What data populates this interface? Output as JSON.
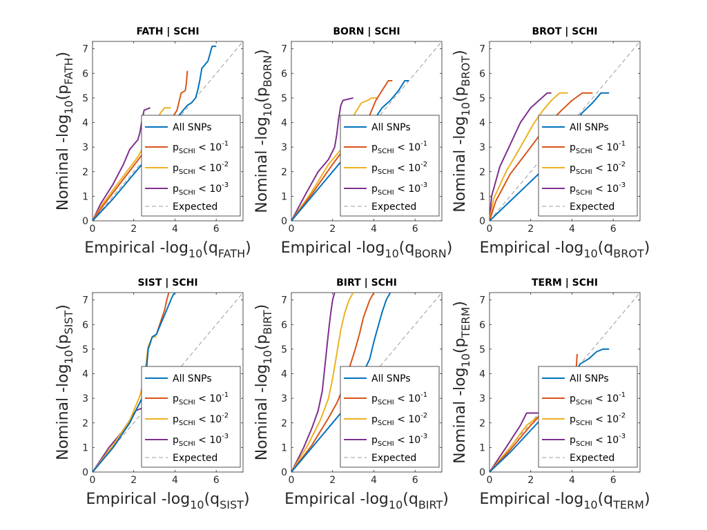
{
  "figure": {
    "background": "#ffffff"
  },
  "legend": {
    "all_snps": "All SNPs",
    "p_letter": "p",
    "p_sub": "SCHI",
    "less_than": " < 10",
    "thresholds": [
      "-1",
      "-2",
      "-3"
    ],
    "expected": "Expected"
  },
  "colors": {
    "all": "#0072BD",
    "lt1": "#D95319",
    "lt2": "#EDB120",
    "lt3": "#7E2F8E",
    "expected": "#7f7f7f"
  },
  "chart_data": [
    {
      "type": "line",
      "title": "FATH | SCHI",
      "xlabel": {
        "prefix": "Empirical -log",
        "sub10": "10",
        "open": "(q",
        "sub": "FATH",
        "close": ")"
      },
      "ylabel": {
        "prefix": "Nominal -log",
        "sub10": "10",
        "open": "(p",
        "sub": "FATH",
        "close": ")"
      },
      "xlim": [
        0,
        7.3
      ],
      "ylim": [
        0,
        7.3
      ],
      "xticks": [
        0,
        2,
        4,
        6
      ],
      "yticks": [
        0,
        1,
        2,
        3,
        4,
        5,
        6,
        7
      ],
      "series": [
        {
          "key": "all",
          "x": [
            0,
            1,
            2,
            3,
            3.7,
            4.0,
            4.4,
            4.6,
            4.8,
            5.0,
            5.1,
            5.2,
            5.3,
            5.6,
            5.8,
            6.0
          ],
          "y": [
            0,
            0.9,
            1.9,
            2.9,
            3.7,
            4.1,
            4.5,
            4.7,
            4.8,
            5.0,
            5.3,
            5.7,
            6.2,
            6.5,
            7.1,
            7.1
          ]
        },
        {
          "key": "lt1",
          "x": [
            0,
            0.5,
            1.5,
            2.6,
            3.4,
            3.8,
            4.1,
            4.3,
            4.5,
            4.55,
            4.6
          ],
          "y": [
            0,
            0.6,
            1.7,
            2.9,
            3.6,
            4.1,
            4.5,
            5.2,
            5.3,
            5.6,
            6.1
          ]
        },
        {
          "key": "lt2",
          "x": [
            0,
            0.5,
            1.3,
            2.2,
            2.6,
            3.0,
            3.3,
            3.5,
            3.8
          ],
          "y": [
            0,
            0.7,
            1.6,
            2.6,
            3.2,
            3.8,
            4.4,
            4.6,
            4.6
          ]
        },
        {
          "key": "lt3",
          "x": [
            0,
            0.4,
            1.0,
            1.5,
            1.8,
            2.1,
            2.2,
            2.3,
            2.4,
            2.5,
            2.8
          ],
          "y": [
            0,
            0.7,
            1.5,
            2.3,
            2.9,
            3.2,
            3.3,
            3.6,
            4.1,
            4.5,
            4.6
          ]
        }
      ]
    },
    {
      "type": "line",
      "title": "BORN | SCHI",
      "xlabel": {
        "prefix": "Empirical -log",
        "sub10": "10",
        "open": "(q",
        "sub": "BORN",
        "close": ")"
      },
      "ylabel": {
        "prefix": "Nominal -log",
        "sub10": "10",
        "open": "(p",
        "sub": "BORN",
        "close": ")"
      },
      "xlim": [
        0,
        7.3
      ],
      "ylim": [
        0,
        7.3
      ],
      "xticks": [
        0,
        2,
        4,
        6
      ],
      "yticks": [
        0,
        1,
        2,
        3,
        4,
        5,
        6,
        7
      ],
      "series": [
        {
          "key": "all",
          "x": [
            0,
            1,
            2,
            3,
            3.6,
            4.0,
            4.4,
            4.8,
            5.2,
            5.5,
            5.7
          ],
          "y": [
            0,
            1.0,
            2.0,
            3.0,
            3.6,
            4.1,
            4.6,
            4.9,
            5.3,
            5.7,
            5.7
          ]
        },
        {
          "key": "lt1",
          "x": [
            0,
            1.0,
            2.0,
            2.8,
            3.4,
            3.8,
            4.1,
            4.4,
            4.7,
            4.9
          ],
          "y": [
            0,
            1.1,
            2.3,
            3.2,
            3.8,
            4.3,
            4.9,
            5.3,
            5.7,
            5.7
          ]
        },
        {
          "key": "lt2",
          "x": [
            0,
            1.0,
            1.8,
            2.5,
            2.8,
            3.1,
            3.4,
            3.7,
            3.9,
            4.2
          ],
          "y": [
            0,
            1.2,
            2.3,
            3.0,
            3.9,
            4.4,
            4.8,
            4.9,
            5.0,
            5.0
          ]
        },
        {
          "key": "lt3",
          "x": [
            0,
            0.7,
            1.3,
            1.8,
            2.1,
            2.2,
            2.3,
            2.4,
            2.5,
            3.0
          ],
          "y": [
            0,
            1.1,
            2.0,
            2.5,
            3.0,
            3.5,
            4.2,
            4.7,
            4.9,
            5.0
          ]
        }
      ]
    },
    {
      "type": "line",
      "title": "BROT | SCHI",
      "xlabel": {
        "prefix": "Empirical -log",
        "sub10": "10",
        "open": "(q",
        "sub": "BROT",
        "close": ")"
      },
      "ylabel": {
        "prefix": "Nominal -log",
        "sub10": "10",
        "open": "(p",
        "sub": "BROT",
        "close": ")"
      },
      "xlim": [
        0,
        7.3
      ],
      "ylim": [
        0,
        7.3
      ],
      "xticks": [
        0,
        2,
        4,
        6
      ],
      "yticks": [
        0,
        1,
        2,
        3,
        4,
        5,
        6,
        7
      ],
      "series": [
        {
          "key": "all",
          "x": [
            0,
            1,
            2,
            3,
            4,
            4.5,
            5.0,
            5.4,
            5.8
          ],
          "y": [
            0,
            0.8,
            1.6,
            2.4,
            3.9,
            4.4,
            4.8,
            5.2,
            5.2
          ]
        },
        {
          "key": "lt1",
          "x": [
            0,
            0.3,
            1.0,
            2.0,
            2.8,
            3.5,
            4.0,
            4.5,
            5.0
          ],
          "y": [
            0,
            0.8,
            1.9,
            3.0,
            3.9,
            4.5,
            4.9,
            5.2,
            5.2
          ]
        },
        {
          "key": "lt2",
          "x": [
            0,
            0.2,
            0.8,
            1.5,
            2.1,
            2.6,
            3.0,
            3.4,
            3.8
          ],
          "y": [
            0,
            0.9,
            2.0,
            3.0,
            3.9,
            4.5,
            4.9,
            5.2,
            5.2
          ]
        },
        {
          "key": "lt3",
          "x": [
            0,
            0.1,
            0.5,
            1.0,
            1.5,
            2.0,
            2.4,
            2.8,
            3.0
          ],
          "y": [
            0,
            1.0,
            2.2,
            3.1,
            4.0,
            4.6,
            4.9,
            5.2,
            5.2
          ]
        }
      ]
    },
    {
      "type": "line",
      "title": "SIST | SCHI",
      "xlabel": {
        "prefix": "Empirical -log",
        "sub10": "10",
        "open": "(q",
        "sub": "SIST",
        "close": ")"
      },
      "ylabel": {
        "prefix": "Nominal -log",
        "sub10": "10",
        "open": "(p",
        "sub": "SIST",
        "close": ")"
      },
      "xlim": [
        0,
        7.3
      ],
      "ylim": [
        0,
        7.3
      ],
      "xticks": [
        0,
        2,
        4,
        6
      ],
      "yticks": [
        0,
        1,
        2,
        3,
        4,
        5,
        6,
        7
      ],
      "series": [
        {
          "key": "all",
          "x": [
            0,
            1,
            1.8,
            2.4,
            2.6,
            2.7,
            2.9,
            3.1,
            3.3,
            3.5,
            3.7,
            3.9,
            4.0
          ],
          "y": [
            0,
            1.0,
            2.0,
            3.0,
            4.0,
            5.0,
            5.5,
            5.6,
            6.0,
            6.4,
            6.8,
            7.2,
            7.3
          ]
        },
        {
          "key": "lt1",
          "x": [
            0,
            1,
            1.8,
            2.4,
            2.6,
            2.7,
            2.9,
            3.1,
            3.3,
            3.5,
            3.6,
            3.7
          ],
          "y": [
            0,
            1.0,
            2.0,
            3.0,
            4.0,
            5.0,
            5.5,
            5.6,
            6.1,
            6.6,
            7.0,
            7.3
          ]
        },
        {
          "key": "lt2",
          "x": [
            0,
            1,
            1.8,
            2.3,
            2.5,
            2.7,
            2.9,
            3.1
          ],
          "y": [
            0,
            1.1,
            2.1,
            3.1,
            3.8,
            5.1,
            5.5,
            5.5
          ]
        },
        {
          "key": "lt3",
          "x": [
            0,
            0.8,
            1.4,
            1.8,
            2.1,
            2.4
          ],
          "y": [
            0,
            1.0,
            1.6,
            2.1,
            2.5,
            2.6
          ]
        }
      ]
    },
    {
      "type": "line",
      "title": "BIRT | SCHI",
      "xlabel": {
        "prefix": "Empirical -log",
        "sub10": "10",
        "open": "(q",
        "sub": "BIRT",
        "close": ")"
      },
      "ylabel": {
        "prefix": "Nominal -log",
        "sub10": "10",
        "open": "(p",
        "sub": "BIRT",
        "close": ")"
      },
      "xlim": [
        0,
        7.3
      ],
      "ylim": [
        0,
        7.3
      ],
      "xticks": [
        0,
        2,
        4,
        6
      ],
      "yticks": [
        0,
        1,
        2,
        3,
        4,
        5,
        6,
        7
      ],
      "series": [
        {
          "key": "all",
          "x": [
            0,
            1,
            2,
            2.6,
            3.0,
            3.4,
            3.8,
            4.0,
            4.2,
            4.4,
            4.6,
            4.8
          ],
          "y": [
            0,
            1.0,
            2.0,
            2.6,
            3.2,
            3.9,
            4.6,
            5.3,
            5.9,
            6.5,
            7.0,
            7.3
          ]
        },
        {
          "key": "lt1",
          "x": [
            0,
            1,
            1.8,
            2.2,
            2.5,
            2.8,
            3.1,
            3.3,
            3.5,
            3.8,
            4.0
          ],
          "y": [
            0,
            1.1,
            2.2,
            2.8,
            3.4,
            4.2,
            5.0,
            5.6,
            6.3,
            7.0,
            7.3
          ]
        },
        {
          "key": "lt2",
          "x": [
            0,
            0.8,
            1.4,
            1.8,
            2.0,
            2.2,
            2.4,
            2.6,
            2.8,
            3.0
          ],
          "y": [
            0,
            1.1,
            2.1,
            3.0,
            3.8,
            4.8,
            5.8,
            6.5,
            7.0,
            7.3
          ]
        },
        {
          "key": "lt3",
          "x": [
            0,
            0.6,
            1.0,
            1.3,
            1.5,
            1.6,
            1.7,
            1.8,
            1.9,
            2.0,
            2.1
          ],
          "y": [
            0,
            1.0,
            1.8,
            2.5,
            3.3,
            4.1,
            4.9,
            5.7,
            6.4,
            7.0,
            7.3
          ]
        }
      ]
    },
    {
      "type": "line",
      "title": "TERM | SCHI",
      "xlabel": {
        "prefix": "Empirical -log",
        "sub10": "10",
        "open": "(q",
        "sub": "TERM",
        "close": ")"
      },
      "ylabel": {
        "prefix": "Nominal -log",
        "sub10": "10",
        "open": "(p",
        "sub": "TERM",
        "close": ")"
      },
      "xlim": [
        0,
        7.3
      ],
      "ylim": [
        0,
        7.3
      ],
      "xticks": [
        0,
        2,
        4,
        6
      ],
      "yticks": [
        0,
        1,
        2,
        3,
        4,
        5,
        6,
        7
      ],
      "series": [
        {
          "key": "all",
          "x": [
            0,
            1,
            2,
            3,
            4.2,
            4.4,
            4.8,
            5.2,
            5.5,
            5.8
          ],
          "y": [
            0,
            0.8,
            1.7,
            2.6,
            4.1,
            4.4,
            4.6,
            4.9,
            5.0,
            5.0
          ]
        },
        {
          "key": "lt1",
          "x": [
            0,
            1,
            2,
            3,
            4.0,
            4.2,
            4.25
          ],
          "y": [
            0,
            0.9,
            1.9,
            2.8,
            3.8,
            4.1,
            4.8
          ]
        },
        {
          "key": "lt2",
          "x": [
            0,
            1,
            1.8,
            2.6
          ],
          "y": [
            0,
            1.0,
            1.9,
            2.4
          ]
        },
        {
          "key": "lt3",
          "x": [
            0,
            0.8,
            1.5,
            1.8,
            2.4,
            2.6
          ],
          "y": [
            0,
            1.0,
            1.9,
            2.4,
            2.4,
            2.4
          ]
        }
      ]
    }
  ]
}
